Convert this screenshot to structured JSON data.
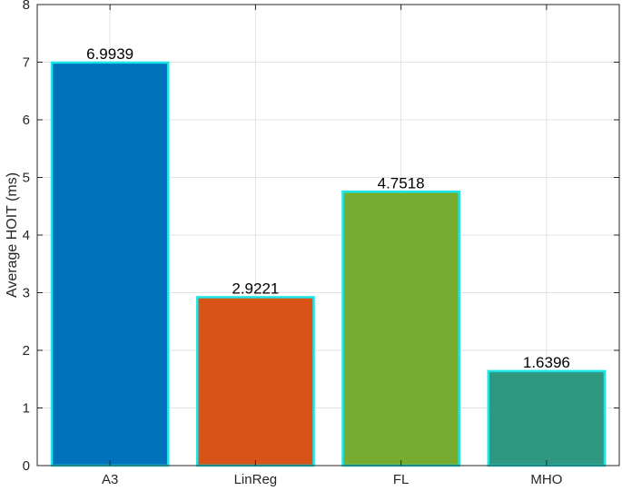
{
  "chart_data": {
    "type": "bar",
    "title": "",
    "xlabel": "",
    "ylabel": "Average HOIT (ms)",
    "categories": [
      "A3",
      "LinReg",
      "FL",
      "MHO"
    ],
    "values": [
      6.9939,
      2.9221,
      4.7518,
      1.6396
    ],
    "value_labels": [
      "6.9939",
      "2.9221",
      "4.7518",
      "1.6396"
    ],
    "bar_colors": [
      "#0072BD",
      "#D95319",
      "#77AC30",
      "#2F9680"
    ],
    "bar_edge_color": "#19E6E6",
    "ylim": [
      0,
      8
    ],
    "yticks": [
      0,
      1,
      2,
      3,
      4,
      5,
      6,
      7,
      8
    ],
    "grid": true,
    "grid_color": "#e3e3e3",
    "axis_color": "#262626",
    "legend": "none"
  }
}
